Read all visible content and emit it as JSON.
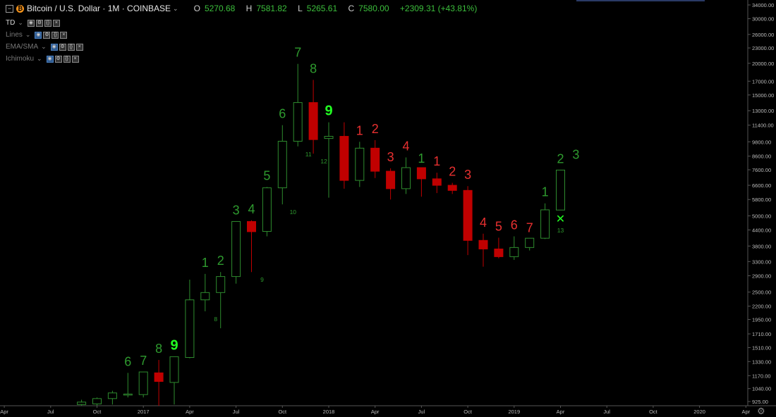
{
  "header": {
    "title": "Bitcoin / U.S. Dollar · 1M · COINBASE",
    "o_label": "O",
    "o": "5270.68",
    "h_label": "H",
    "h": "7581.82",
    "l_label": "L",
    "l": "5265.61",
    "c_label": "C",
    "c": "7580.00",
    "change": "+2309.31 (+43.81%)"
  },
  "indicators": [
    {
      "name": "TD"
    },
    {
      "name": "Lines"
    },
    {
      "name": "EMA/SMA"
    },
    {
      "name": "Ichimoku"
    }
  ],
  "colors": {
    "up": "#2e8b2e",
    "down": "#c00000",
    "nine": "#22ff22",
    "background": "#000000"
  },
  "icons": [
    "collapse-icon",
    "bitcoin-icon",
    "eye-icon",
    "settings-icon",
    "code-icon",
    "close-icon",
    "gear-icon"
  ],
  "chart_data": {
    "type": "candlestick",
    "x_labels": [
      "Apr",
      "Jul",
      "Oct",
      "2017",
      "Apr",
      "Jul",
      "Oct",
      "2018",
      "Apr",
      "Jul",
      "Oct",
      "2019",
      "Apr",
      "Jul",
      "Oct",
      "2020",
      "Apr"
    ],
    "y_ticks": [
      "34000.00",
      "30000.00",
      "26000.00",
      "23000.00",
      "20000.00",
      "17000.00",
      "15000.00",
      "13000.00",
      "11400.00",
      "9800.00",
      "8600.00",
      "7600.00",
      "6600.00",
      "5800.00",
      "5000.00",
      "4400.00",
      "3800.00",
      "3300.00",
      "2900.00",
      "2500.00",
      "2200.00",
      "1950.00",
      "1710.00",
      "1510.00",
      "1330.00",
      "1170.00",
      "1040.00",
      "925.00"
    ],
    "y_scale": "log",
    "ylim": [
      900,
      36000
    ],
    "candles": [
      {
        "date": "2016-09",
        "o": 900,
        "h": 940,
        "l": 880,
        "c": 920
      },
      {
        "date": "2016-10",
        "o": 905,
        "h": 960,
        "l": 890,
        "c": 950
      },
      {
        "date": "2016-11",
        "o": 950,
        "h": 1020,
        "l": 900,
        "c": 1000
      },
      {
        "date": "2016-12",
        "o": 990,
        "h": 1200,
        "l": 960,
        "c": 990
      },
      {
        "date": "2017-01",
        "o": 985,
        "h": 1210,
        "l": 960,
        "c": 1210
      },
      {
        "date": "2017-02",
        "o": 1200,
        "h": 1350,
        "l": 880,
        "c": 1110
      },
      {
        "date": "2017-03",
        "o": 1100,
        "h": 1390,
        "l": 900,
        "c": 1390
      },
      {
        "date": "2017-04",
        "o": 1380,
        "h": 2800,
        "l": 1370,
        "c": 2330
      },
      {
        "date": "2017-05",
        "o": 2330,
        "h": 2950,
        "l": 2100,
        "c": 2490
      },
      {
        "date": "2017-06",
        "o": 2490,
        "h": 3000,
        "l": 1800,
        "c": 2880
      },
      {
        "date": "2017-07",
        "o": 2880,
        "h": 4750,
        "l": 2700,
        "c": 4750
      },
      {
        "date": "2017-08",
        "o": 4750,
        "h": 4800,
        "l": 3000,
        "c": 4330
      },
      {
        "date": "2017-09",
        "o": 4340,
        "h": 6500,
        "l": 4150,
        "c": 6450
      },
      {
        "date": "2017-10",
        "o": 6450,
        "h": 11400,
        "l": 5550,
        "c": 9850
      },
      {
        "date": "2017-11",
        "o": 9850,
        "h": 19900,
        "l": 9400,
        "c": 14000
      },
      {
        "date": "2017-12",
        "o": 14000,
        "h": 17200,
        "l": 8800,
        "c": 10000
      },
      {
        "date": "2018-01",
        "o": 10100,
        "h": 11700,
        "l": 5900,
        "c": 10300
      },
      {
        "date": "2018-02",
        "o": 10300,
        "h": 11700,
        "l": 6400,
        "c": 6900
      },
      {
        "date": "2018-03",
        "o": 6900,
        "h": 9800,
        "l": 6500,
        "c": 9250
      },
      {
        "date": "2018-04",
        "o": 9250,
        "h": 9950,
        "l": 7050,
        "c": 7500
      },
      {
        "date": "2018-05",
        "o": 7500,
        "h": 7700,
        "l": 5800,
        "c": 6400
      },
      {
        "date": "2018-06",
        "o": 6400,
        "h": 8500,
        "l": 6100,
        "c": 7750
      },
      {
        "date": "2018-07",
        "o": 7750,
        "h": 7600,
        "l": 5950,
        "c": 7000
      },
      {
        "date": "2018-08",
        "o": 7000,
        "h": 7400,
        "l": 6150,
        "c": 6600
      },
      {
        "date": "2018-09",
        "o": 6600,
        "h": 6750,
        "l": 6100,
        "c": 6300
      },
      {
        "date": "2018-10",
        "o": 6300,
        "h": 6550,
        "l": 3500,
        "c": 4000
      },
      {
        "date": "2018-11",
        "o": 4000,
        "h": 4250,
        "l": 3150,
        "c": 3700
      },
      {
        "date": "2018-12",
        "o": 3700,
        "h": 4100,
        "l": 3400,
        "c": 3450
      },
      {
        "date": "2019-01",
        "o": 3450,
        "h": 4150,
        "l": 3350,
        "c": 3750
      },
      {
        "date": "2019-02",
        "o": 3750,
        "h": 4050,
        "l": 3650,
        "c": 4080
      },
      {
        "date": "2019-03",
        "o": 4080,
        "h": 5600,
        "l": 4050,
        "c": 5280
      },
      {
        "date": "2019-04",
        "o": 5270.68,
        "h": 7581.82,
        "l": 5265.61,
        "c": 7580
      }
    ],
    "annotations": [
      {
        "date": "2016-12",
        "label": "6",
        "color": "up-label"
      },
      {
        "date": "2017-01",
        "label": "7",
        "color": "up-label"
      },
      {
        "date": "2017-02",
        "label": "8",
        "color": "up-label"
      },
      {
        "date": "2017-03",
        "label": "9",
        "color": "nine"
      },
      {
        "date": "2017-05",
        "label": "1",
        "color": "up-label"
      },
      {
        "date": "2017-06",
        "label": "2",
        "color": "up-label"
      },
      {
        "date": "2017-07",
        "label": "3",
        "color": "up-label"
      },
      {
        "date": "2017-08",
        "label": "4",
        "color": "up-label"
      },
      {
        "date": "2017-09",
        "label": "5",
        "color": "up-label"
      },
      {
        "date": "2017-10",
        "label": "6",
        "color": "up-label"
      },
      {
        "date": "2017-11",
        "label": "7",
        "color": "up-label"
      },
      {
        "date": "2017-12",
        "label": "8",
        "color": "up-label"
      },
      {
        "date": "2018-01",
        "label": "9",
        "color": "nine"
      },
      {
        "date": "2018-03",
        "label": "1",
        "color": "down-label"
      },
      {
        "date": "2018-04",
        "label": "2",
        "color": "down-label"
      },
      {
        "date": "2018-05",
        "label": "3",
        "color": "down-label"
      },
      {
        "date": "2018-06",
        "label": "4",
        "color": "down-label"
      },
      {
        "date": "2018-07",
        "label": "1",
        "color": "up-label"
      },
      {
        "date": "2018-08",
        "label": "1",
        "color": "down-label"
      },
      {
        "date": "2018-09",
        "label": "2",
        "color": "down-label"
      },
      {
        "date": "2018-10",
        "label": "3",
        "color": "down-label"
      },
      {
        "date": "2018-11",
        "label": "4",
        "color": "down-label"
      },
      {
        "date": "2018-12",
        "label": "5",
        "color": "down-label"
      },
      {
        "date": "2019-01",
        "label": "6",
        "color": "down-label"
      },
      {
        "date": "2019-02",
        "label": "7",
        "color": "down-label"
      },
      {
        "date": "2019-03",
        "label": "1",
        "color": "up-label"
      },
      {
        "date": "2019-04",
        "label": "2",
        "color": "up-label"
      },
      {
        "date": "2019-05",
        "label": "3",
        "color": "up-label"
      }
    ],
    "countdown": [
      {
        "date": "2017-05",
        "label": "8"
      },
      {
        "date": "2017-08",
        "label": "9"
      },
      {
        "date": "2017-10",
        "label": "10"
      },
      {
        "date": "2017-11",
        "label": "11"
      },
      {
        "date": "2017-12",
        "label": "12"
      },
      {
        "date": "2019-04",
        "label": "13"
      }
    ],
    "marker": {
      "date": "2019-04",
      "symbol": "✕"
    }
  }
}
